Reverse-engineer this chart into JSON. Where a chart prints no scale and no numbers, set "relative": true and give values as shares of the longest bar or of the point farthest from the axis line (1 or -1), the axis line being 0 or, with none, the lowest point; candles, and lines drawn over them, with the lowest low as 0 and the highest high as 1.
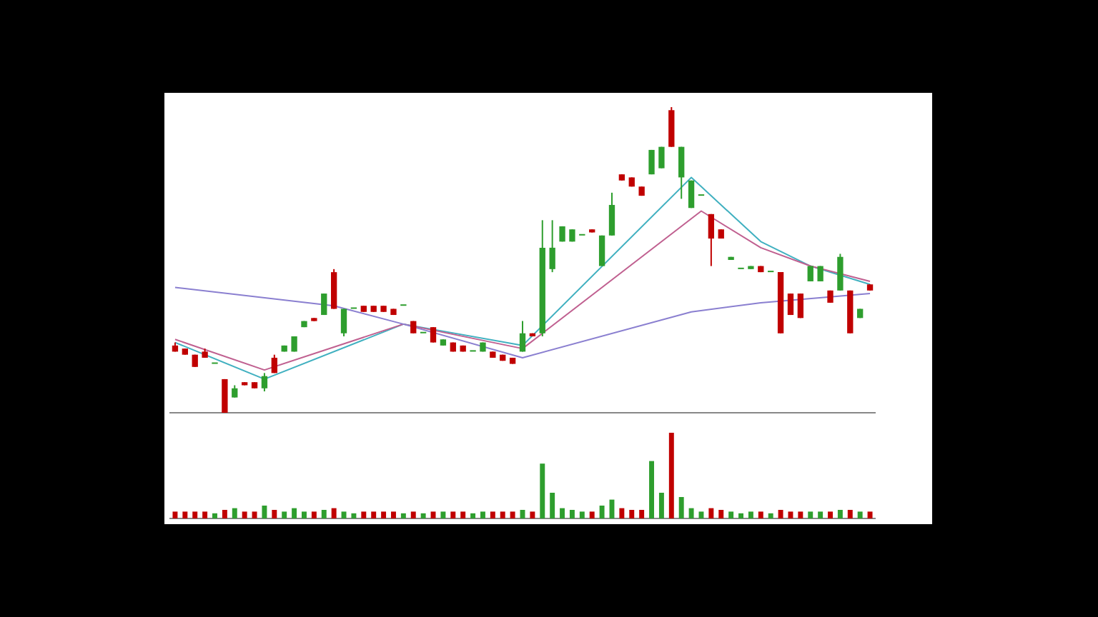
{
  "chart_data": [
    {
      "type": "candlestick",
      "relative": true,
      "legend": false,
      "categories": [
        null,
        null,
        null,
        null,
        null,
        null,
        null,
        null,
        null,
        null,
        null,
        null,
        null,
        null,
        null,
        null,
        null,
        null,
        null,
        null,
        null,
        null,
        null,
        null,
        null,
        null,
        null,
        null,
        null,
        null,
        null,
        null,
        null,
        null,
        null,
        null,
        null,
        null,
        null,
        null,
        null,
        null,
        null,
        null,
        null,
        null,
        null,
        null,
        null,
        null,
        null,
        null,
        null,
        null,
        null,
        null,
        null,
        null,
        null,
        null,
        null,
        null,
        null,
        null,
        null,
        null,
        null,
        null,
        null,
        null,
        null
      ],
      "ohlc": [
        [
          0.22,
          0.23,
          0.2,
          0.2
        ],
        [
          0.21,
          0.21,
          0.19,
          0.19
        ],
        [
          0.19,
          0.19,
          0.15,
          0.15
        ],
        [
          0.2,
          0.21,
          0.18,
          0.18
        ],
        [
          0.16,
          0.16,
          0.16,
          0.16
        ],
        [
          0.11,
          0.11,
          0,
          0
        ],
        [
          0.05,
          0.09,
          0.05,
          0.08
        ],
        [
          0.1,
          0.1,
          0.09,
          0.09
        ],
        [
          0.1,
          0.1,
          0.08,
          0.08
        ],
        [
          0.08,
          0.13,
          0.07,
          0.12
        ],
        [
          0.18,
          0.19,
          0.13,
          0.13
        ],
        [
          0.2,
          0.22,
          0.2,
          0.22
        ],
        [
          0.2,
          0.25,
          0.2,
          0.25
        ],
        [
          0.28,
          0.3,
          0.28,
          0.3
        ],
        [
          0.31,
          0.31,
          0.3,
          0.3
        ],
        [
          0.32,
          0.39,
          0.32,
          0.39
        ],
        [
          0.46,
          0.47,
          0.34,
          0.34
        ],
        [
          0.26,
          0.34,
          0.25,
          0.34
        ],
        [
          0.34,
          0.34,
          0.34,
          0.34
        ],
        [
          0.35,
          0.35,
          0.33,
          0.33
        ],
        [
          0.35,
          0.35,
          0.33,
          0.33
        ],
        [
          0.35,
          0.35,
          0.33,
          0.33
        ],
        [
          0.34,
          0.34,
          0.32,
          0.32
        ],
        [
          0.35,
          0.35,
          0.35,
          0.35
        ],
        [
          0.3,
          0.3,
          0.26,
          0.26
        ],
        [
          0.26,
          0.26,
          0.26,
          0.26
        ],
        [
          0.28,
          0.28,
          0.23,
          0.23
        ],
        [
          0.22,
          0.24,
          0.22,
          0.24
        ],
        [
          0.23,
          0.23,
          0.2,
          0.2
        ],
        [
          0.22,
          0.22,
          0.2,
          0.2
        ],
        [
          0.2,
          0.2,
          0.2,
          0.2
        ],
        [
          0.2,
          0.23,
          0.2,
          0.23
        ],
        [
          0.2,
          0.2,
          0.18,
          0.18
        ],
        [
          0.19,
          0.19,
          0.17,
          0.17
        ],
        [
          0.18,
          0.18,
          0.16,
          0.16
        ],
        [
          0.2,
          0.3,
          0.2,
          0.26
        ],
        [
          0.26,
          0.26,
          0.25,
          0.25
        ],
        [
          0.26,
          0.63,
          0.25,
          0.54
        ],
        [
          0.47,
          0.63,
          0.46,
          0.54
        ],
        [
          0.56,
          0.61,
          0.56,
          0.61
        ],
        [
          0.56,
          0.6,
          0.56,
          0.6
        ],
        [
          0.58,
          0.58,
          0.58,
          0.58
        ],
        [
          0.6,
          0.6,
          0.59,
          0.59
        ],
        [
          0.48,
          0.58,
          0.48,
          0.58
        ],
        [
          0.58,
          0.72,
          0.58,
          0.68
        ],
        [
          0.78,
          0.78,
          0.76,
          0.76
        ],
        [
          0.77,
          0.77,
          0.74,
          0.74
        ],
        [
          0.74,
          0.74,
          0.71,
          0.71
        ],
        [
          0.78,
          0.86,
          0.78,
          0.86
        ],
        [
          0.8,
          0.87,
          0.8,
          0.87
        ],
        [
          0.99,
          1,
          0.87,
          0.87
        ],
        [
          0.77,
          0.87,
          0.7,
          0.87
        ],
        [
          0.67,
          0.76,
          0.67,
          0.76
        ],
        [
          0.71,
          0.71,
          0.71,
          0.71
        ],
        [
          0.65,
          0.65,
          0.48,
          0.57
        ],
        [
          0.6,
          0.6,
          0.57,
          0.57
        ],
        [
          0.5,
          0.51,
          0.5,
          0.51
        ],
        [
          0.47,
          0.47,
          0.47,
          0.47
        ],
        [
          0.47,
          0.48,
          0.47,
          0.48
        ],
        [
          0.48,
          0.48,
          0.46,
          0.46
        ],
        [
          0.46,
          0.46,
          0.46,
          0.46
        ],
        [
          0.46,
          0.46,
          0.26,
          0.26
        ],
        [
          0.39,
          0.39,
          0.32,
          0.32
        ],
        [
          0.39,
          0.39,
          0.31,
          0.31
        ],
        [
          0.43,
          0.48,
          0.43,
          0.48
        ],
        [
          0.43,
          0.48,
          0.43,
          0.48
        ],
        [
          0.4,
          0.4,
          0.36,
          0.36
        ],
        [
          0.4,
          0.52,
          0.4,
          0.51
        ],
        [
          0.4,
          0.4,
          0.26,
          0.26
        ],
        [
          0.31,
          0.34,
          0.31,
          0.34
        ],
        [
          0.42,
          0.42,
          0.4,
          0.4
        ]
      ],
      "colors": [
        "#c00000",
        "#c00000",
        "#c00000",
        "#c00000",
        "#2e9e2e",
        "#c00000",
        "#2e9e2e",
        "#c00000",
        "#c00000",
        "#2e9e2e",
        "#c00000",
        "#2e9e2e",
        "#2e9e2e",
        "#2e9e2e",
        "#c00000",
        "#2e9e2e",
        "#c00000",
        "#2e9e2e",
        "#2e9e2e",
        "#c00000",
        "#c00000",
        "#c00000",
        "#c00000",
        "#2e9e2e",
        "#c00000",
        "#2e9e2e",
        "#c00000",
        "#2e9e2e",
        "#c00000",
        "#c00000",
        "#2e9e2e",
        "#2e9e2e",
        "#c00000",
        "#c00000",
        "#c00000",
        "#2e9e2e",
        "#c00000",
        "#2e9e2e",
        "#2e9e2e",
        "#2e9e2e",
        "#2e9e2e",
        "#2e9e2e",
        "#c00000",
        "#2e9e2e",
        "#2e9e2e",
        "#c00000",
        "#c00000",
        "#c00000",
        "#2e9e2e",
        "#2e9e2e",
        "#c00000",
        "#2e9e2e",
        "#2e9e2e",
        "#2e9e2e",
        "#c00000",
        "#c00000",
        "#2e9e2e",
        "#2e9e2e",
        "#2e9e2e",
        "#c00000",
        "#2e9e2e",
        "#c00000",
        "#c00000",
        "#c00000",
        "#2e9e2e",
        "#2e9e2e",
        "#c00000",
        "#2e9e2e",
        "#c00000",
        "#2e9e2e",
        "#c00000"
      ],
      "series": [
        {
          "type": "line",
          "color": "#8a7fd0",
          "values": [
            0.41,
            null,
            null,
            null,
            null,
            null,
            null,
            null,
            null,
            null,
            null,
            null,
            null,
            null,
            null,
            null,
            0.35,
            null,
            null,
            null,
            null,
            null,
            null,
            0.29,
            null,
            null,
            null,
            null,
            null,
            null,
            null,
            null,
            null,
            null,
            null,
            0.18,
            null,
            null,
            null,
            null,
            null,
            null,
            null,
            null,
            null,
            null,
            null,
            null,
            null,
            null,
            null,
            null,
            0.33,
            null,
            null,
            null,
            null,
            null,
            null,
            0.36,
            null,
            null,
            null,
            null,
            null,
            null,
            null,
            null,
            null,
            null,
            0.39
          ]
        },
        {
          "type": "line",
          "color": "#c06090",
          "values": [
            0.24,
            null,
            null,
            null,
            null,
            null,
            null,
            null,
            null,
            0.14,
            null,
            null,
            null,
            null,
            null,
            null,
            null,
            null,
            null,
            null,
            null,
            null,
            null,
            0.29,
            null,
            null,
            null,
            null,
            null,
            null,
            null,
            null,
            null,
            null,
            null,
            0.21,
            null,
            null,
            null,
            null,
            null,
            null,
            null,
            null,
            null,
            null,
            null,
            null,
            null,
            null,
            null,
            null,
            null,
            0.66,
            null,
            null,
            null,
            null,
            null,
            0.54,
            null,
            null,
            null,
            null,
            0.48,
            null,
            null,
            null,
            null,
            null,
            0.43
          ]
        },
        {
          "type": "line",
          "color": "#40b0c0",
          "values": [
            0.23,
            null,
            null,
            null,
            null,
            null,
            null,
            null,
            null,
            0.11,
            null,
            null,
            null,
            null,
            null,
            null,
            null,
            null,
            null,
            null,
            null,
            null,
            null,
            0.29,
            null,
            null,
            null,
            null,
            null,
            null,
            null,
            null,
            null,
            null,
            null,
            0.22,
            null,
            null,
            null,
            null,
            null,
            null,
            null,
            null,
            null,
            null,
            null,
            null,
            null,
            null,
            null,
            null,
            0.77,
            null,
            null,
            null,
            null,
            null,
            null,
            0.56,
            null,
            null,
            null,
            null,
            0.48,
            null,
            null,
            null,
            null,
            null,
            0.42
          ]
        }
      ]
    },
    {
      "type": "bar",
      "relative": true,
      "legend": false,
      "categories": [
        null,
        null,
        null,
        null,
        null,
        null,
        null,
        null,
        null,
        null,
        null,
        null,
        null,
        null,
        null,
        null,
        null,
        null,
        null,
        null,
        null,
        null,
        null,
        null,
        null,
        null,
        null,
        null,
        null,
        null,
        null,
        null,
        null,
        null,
        null,
        null,
        null,
        null,
        null,
        null,
        null,
        null,
        null,
        null,
        null,
        null,
        null,
        null,
        null,
        null,
        null,
        null,
        null,
        null,
        null,
        null,
        null,
        null,
        null,
        null,
        null,
        null,
        null,
        null,
        null,
        null,
        null,
        null,
        null,
        null,
        null
      ],
      "values": [
        0.08,
        0.08,
        0.08,
        0.08,
        0.06,
        0.1,
        0.12,
        0.08,
        0.08,
        0.15,
        0.1,
        0.08,
        0.12,
        0.08,
        0.08,
        0.1,
        0.12,
        0.08,
        0.06,
        0.08,
        0.08,
        0.08,
        0.08,
        0.06,
        0.08,
        0.06,
        0.08,
        0.08,
        0.08,
        0.08,
        0.06,
        0.08,
        0.08,
        0.08,
        0.08,
        0.1,
        0.08,
        0.64,
        0.3,
        0.12,
        0.1,
        0.08,
        0.08,
        0.15,
        0.22,
        0.12,
        0.1,
        0.1,
        0.67,
        0.3,
        1,
        0.25,
        0.12,
        0.08,
        0.12,
        0.1,
        0.08,
        0.06,
        0.08,
        0.08,
        0.06,
        0.1,
        0.08,
        0.08,
        0.08,
        0.08,
        0.08,
        0.1,
        0.1,
        0.08,
        0.08
      ],
      "colors": [
        "#c00000",
        "#c00000",
        "#c00000",
        "#c00000",
        "#2e9e2e",
        "#c00000",
        "#2e9e2e",
        "#c00000",
        "#c00000",
        "#2e9e2e",
        "#c00000",
        "#2e9e2e",
        "#2e9e2e",
        "#2e9e2e",
        "#c00000",
        "#2e9e2e",
        "#c00000",
        "#2e9e2e",
        "#2e9e2e",
        "#c00000",
        "#c00000",
        "#c00000",
        "#c00000",
        "#2e9e2e",
        "#c00000",
        "#2e9e2e",
        "#c00000",
        "#2e9e2e",
        "#c00000",
        "#c00000",
        "#2e9e2e",
        "#2e9e2e",
        "#c00000",
        "#c00000",
        "#c00000",
        "#2e9e2e",
        "#c00000",
        "#2e9e2e",
        "#2e9e2e",
        "#2e9e2e",
        "#2e9e2e",
        "#2e9e2e",
        "#c00000",
        "#2e9e2e",
        "#2e9e2e",
        "#c00000",
        "#c00000",
        "#c00000",
        "#2e9e2e",
        "#2e9e2e",
        "#c00000",
        "#2e9e2e",
        "#2e9e2e",
        "#2e9e2e",
        "#c00000",
        "#c00000",
        "#2e9e2e",
        "#2e9e2e",
        "#2e9e2e",
        "#c00000",
        "#2e9e2e",
        "#c00000",
        "#c00000",
        "#c00000",
        "#2e9e2e",
        "#2e9e2e",
        "#c00000",
        "#2e9e2e",
        "#c00000",
        "#2e9e2e",
        "#c00000"
      ]
    }
  ]
}
